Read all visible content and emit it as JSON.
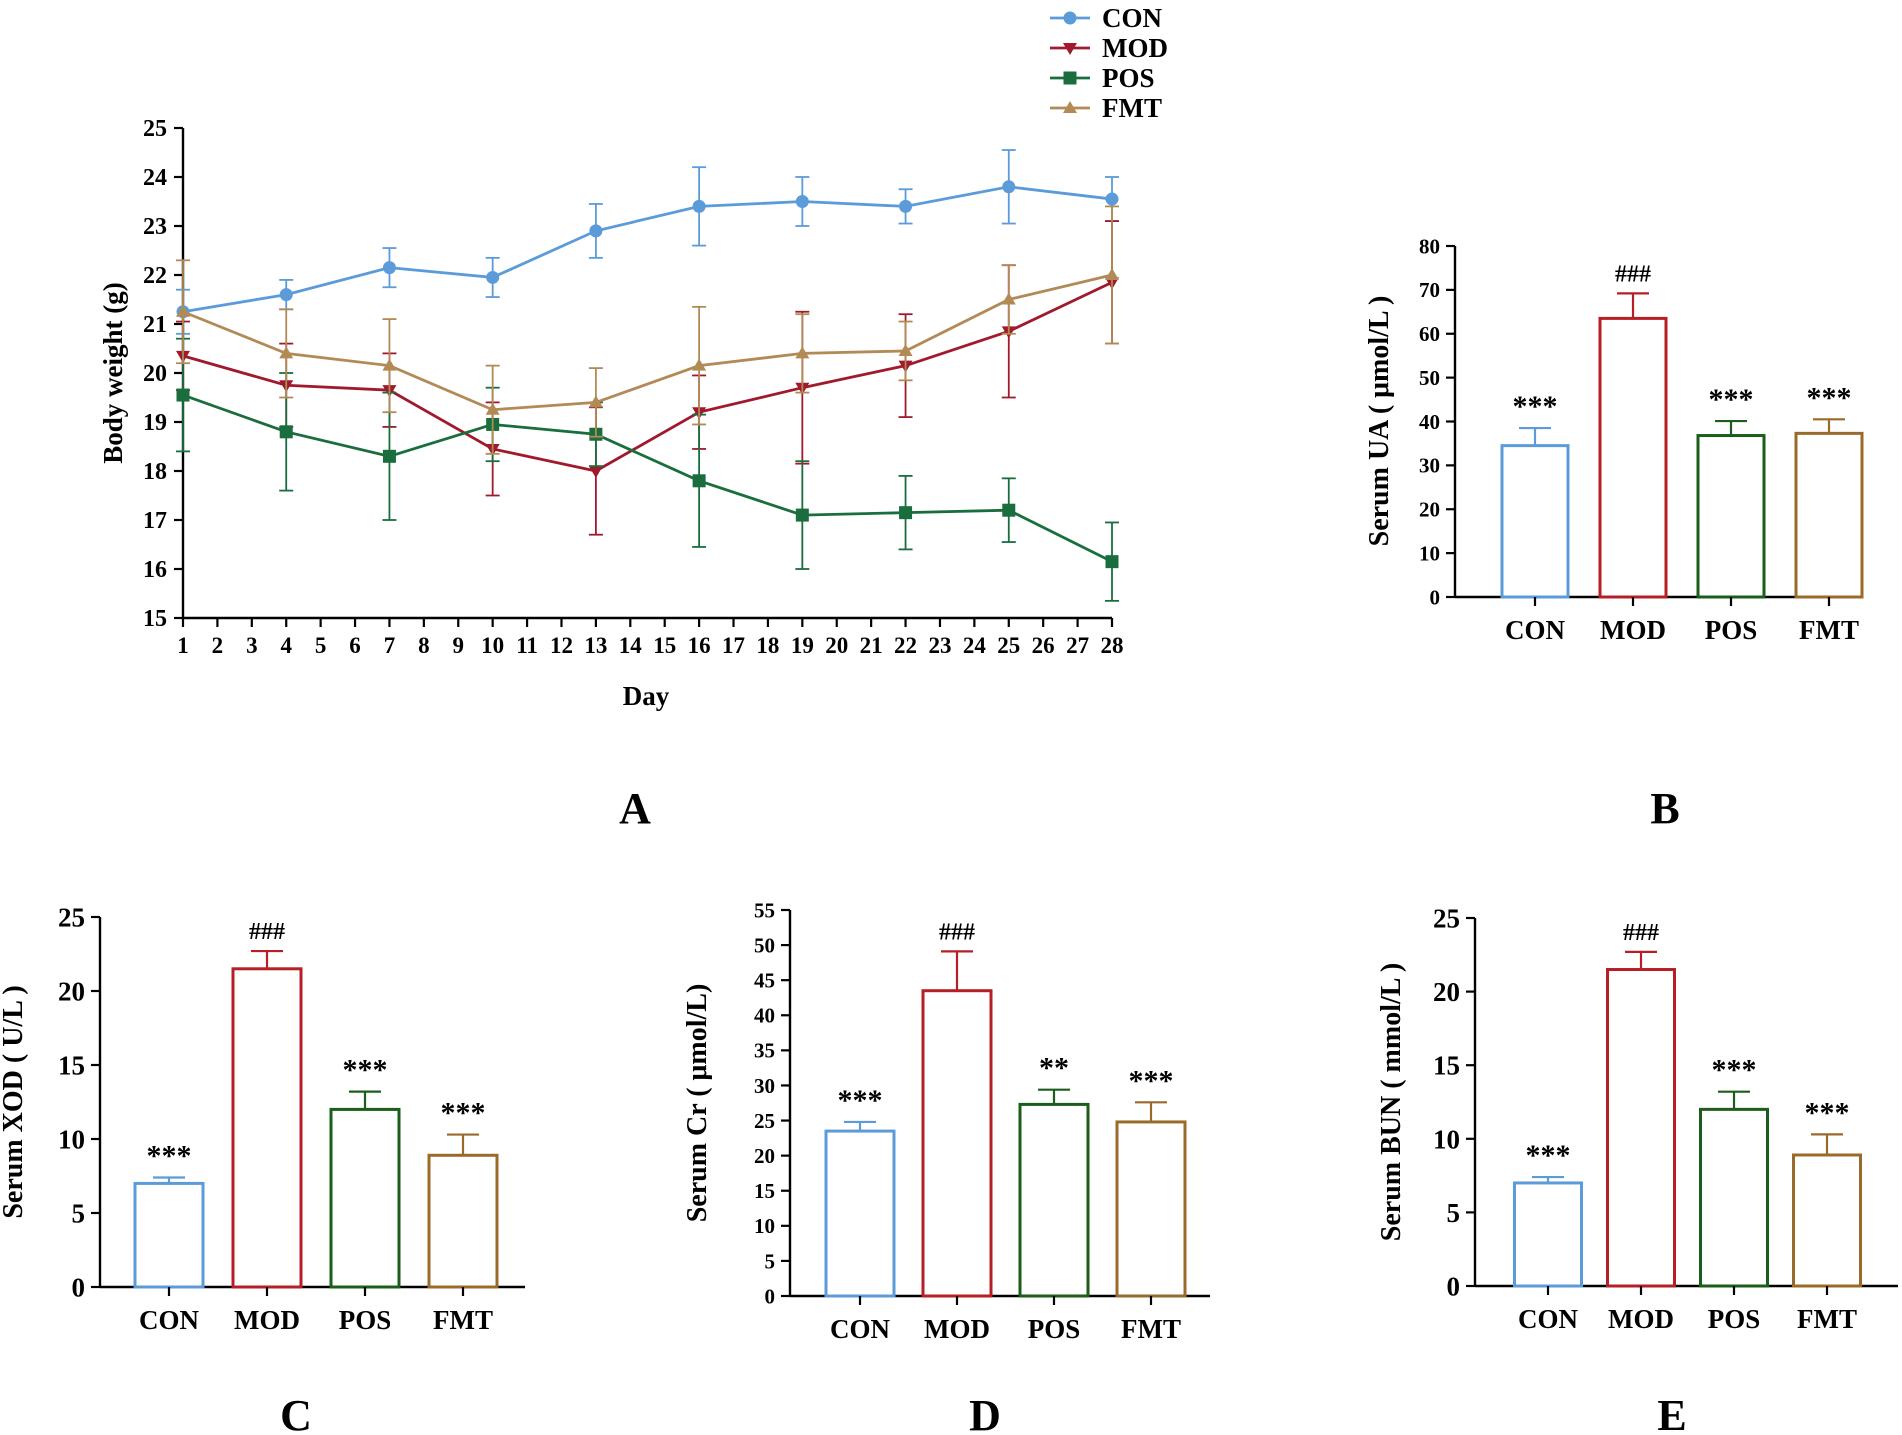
{
  "colors": {
    "CON": "#5b9bd9",
    "MOD": "#a01a2c",
    "POS": "#1a6e3e",
    "FMT": "#b28a55",
    "bar_MOD": "#b51f25",
    "bar_POS": "#1a5e1a",
    "bar_FMT": "#9a6a2a"
  },
  "chart_data": [
    {
      "id": "A",
      "panel_label": "A",
      "type": "line",
      "xlabel": "Day",
      "ylabel": "Body weight (g)",
      "xlim": [
        1,
        28
      ],
      "ylim": [
        15,
        25
      ],
      "xticks": [
        "1",
        "2",
        "3",
        "4",
        "5",
        "6",
        "7",
        "8",
        "9",
        "10",
        "11",
        "12",
        "13",
        "14",
        "15",
        "16",
        "17",
        "18",
        "19",
        "20",
        "21",
        "22",
        "23",
        "24",
        "25",
        "26",
        "27",
        "28"
      ],
      "yticks": [
        "15",
        "16",
        "17",
        "18",
        "19",
        "20",
        "21",
        "22",
        "23",
        "24",
        "25"
      ],
      "legend": "top-right, above plot",
      "x": [
        1,
        4,
        7,
        10,
        13,
        16,
        19,
        22,
        25,
        28
      ],
      "series": [
        {
          "name": "CON",
          "marker": "circle",
          "values": [
            21.25,
            21.6,
            22.15,
            21.95,
            22.9,
            23.4,
            23.5,
            23.4,
            23.8,
            23.55
          ],
          "errors": [
            0.45,
            0.3,
            0.4,
            0.4,
            0.55,
            0.8,
            0.5,
            0.35,
            0.75,
            0.45
          ]
        },
        {
          "name": "MOD",
          "marker": "triangle-down",
          "values": [
            20.35,
            19.75,
            19.65,
            18.45,
            18.0,
            19.2,
            19.7,
            20.15,
            20.85,
            21.85
          ],
          "errors": [
            0.7,
            0.85,
            0.75,
            0.95,
            1.3,
            0.75,
            1.55,
            1.05,
            1.35,
            1.25
          ]
        },
        {
          "name": "POS",
          "marker": "square",
          "values": [
            19.55,
            18.8,
            18.3,
            18.95,
            18.75,
            17.8,
            17.1,
            17.15,
            17.2,
            16.15
          ],
          "errors": [
            1.15,
            1.2,
            1.3,
            0.75,
            0.65,
            1.35,
            1.1,
            0.75,
            0.65,
            0.8
          ]
        },
        {
          "name": "FMT",
          "marker": "triangle-up",
          "values": [
            21.25,
            20.4,
            20.15,
            19.25,
            19.4,
            20.15,
            20.4,
            20.45,
            21.5,
            22.0
          ],
          "errors": [
            1.05,
            0.9,
            0.95,
            0.9,
            0.7,
            1.2,
            0.8,
            0.6,
            0.7,
            1.4
          ]
        }
      ]
    },
    {
      "id": "B",
      "panel_label": "B",
      "type": "bar",
      "ylabel": "Serum UA ( μmol/L )",
      "categories": [
        "CON",
        "MOD",
        "POS",
        "FMT"
      ],
      "values": [
        34.5,
        63.5,
        36.8,
        37.3
      ],
      "errors": [
        4.0,
        5.7,
        3.3,
        3.2
      ],
      "significance": [
        "***",
        "###",
        "***",
        "***"
      ],
      "ylim": [
        0,
        80
      ],
      "yticks": [
        "0",
        "10",
        "20",
        "30",
        "40",
        "50",
        "60",
        "70",
        "80"
      ]
    },
    {
      "id": "C",
      "panel_label": "C",
      "type": "bar",
      "ylabel": "Serum XOD ( U/L )",
      "categories": [
        "CON",
        "MOD",
        "POS",
        "FMT"
      ],
      "values": [
        7.0,
        21.5,
        12.0,
        8.9
      ],
      "errors": [
        0.4,
        1.2,
        1.2,
        1.4
      ],
      "significance": [
        "***",
        "###",
        "***",
        "***"
      ],
      "ylim": [
        0,
        25
      ],
      "yticks": [
        "0",
        "5",
        "10",
        "15",
        "20",
        "25"
      ]
    },
    {
      "id": "D",
      "panel_label": "D",
      "type": "bar",
      "ylabel": "Serum Cr ( μmol/L)",
      "categories": [
        "CON",
        "MOD",
        "POS",
        "FMT"
      ],
      "values": [
        23.5,
        43.5,
        27.3,
        24.8
      ],
      "errors": [
        1.3,
        5.6,
        2.1,
        2.8
      ],
      "significance": [
        "***",
        "###",
        "**",
        "***"
      ],
      "ylim": [
        0,
        55
      ],
      "yticks": [
        "0",
        "5",
        "10",
        "15",
        "20",
        "25",
        "30",
        "35",
        "40",
        "45",
        "50",
        "55"
      ]
    },
    {
      "id": "E",
      "panel_label": "E",
      "type": "bar",
      "ylabel": "Serum BUN ( mmol/L )",
      "categories": [
        "CON",
        "MOD",
        "POS",
        "FMT"
      ],
      "values": [
        7.0,
        21.5,
        12.0,
        8.9
      ],
      "errors": [
        0.4,
        1.2,
        1.2,
        1.4
      ],
      "significance": [
        "***",
        "###",
        "***",
        "***"
      ],
      "ylim": [
        0,
        25
      ],
      "yticks": [
        "0",
        "5",
        "10",
        "15",
        "20",
        "25"
      ]
    }
  ]
}
